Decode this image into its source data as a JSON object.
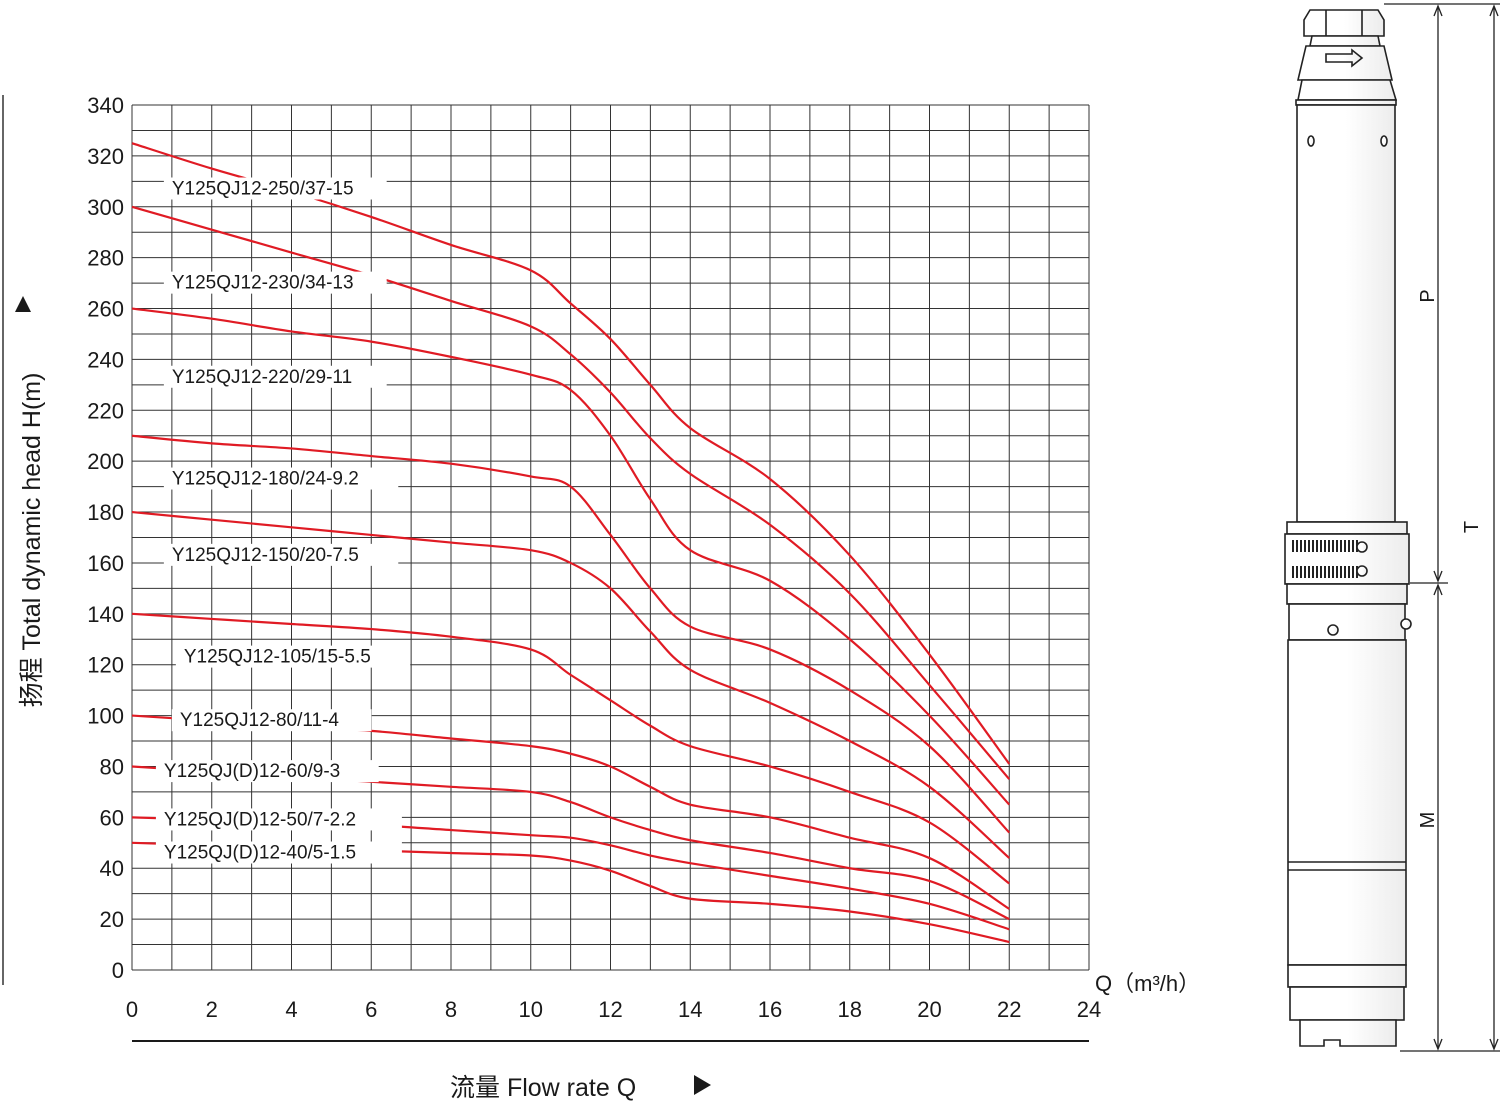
{
  "chart_data": {
    "type": "line",
    "xlabel": "流量 Flow rate Q",
    "xunit": "Q（m³/h）",
    "ylabel": "扬程 Total dynamic head H(m)",
    "xlim": [
      0,
      24
    ],
    "ylim": [
      0,
      340
    ],
    "xticks": [
      0,
      2,
      4,
      6,
      8,
      10,
      12,
      14,
      16,
      18,
      20,
      22,
      24
    ],
    "yticks": [
      0,
      20,
      40,
      60,
      80,
      100,
      120,
      140,
      160,
      180,
      200,
      220,
      240,
      260,
      280,
      300,
      320,
      340
    ],
    "grid": true,
    "x": [
      0,
      2,
      4,
      6,
      8,
      10,
      11,
      12,
      13,
      14,
      16,
      18,
      20,
      22
    ],
    "series": [
      {
        "name": "Y125QJ12-250/37-15",
        "values": [
          325,
          315,
          306,
          296,
          285,
          275,
          262,
          248,
          230,
          213,
          193,
          163,
          124,
          81
        ]
      },
      {
        "name": "Y125QJ12-230/34-13",
        "values": [
          300,
          291,
          282,
          273,
          263,
          253,
          242,
          227,
          209,
          195,
          175,
          148,
          112,
          75
        ]
      },
      {
        "name": "Y125QJ12-220/29-11",
        "values": [
          260,
          256,
          251,
          247,
          241,
          234,
          228,
          210,
          185,
          165,
          153,
          130,
          100,
          65
        ]
      },
      {
        "name": "Y125QJ12-180/24-9.2",
        "values": [
          210,
          207,
          205,
          202,
          199,
          194,
          190,
          171,
          150,
          135,
          126,
          110,
          88,
          54
        ]
      },
      {
        "name": "Y125QJ12-150/20-7.5",
        "values": [
          180,
          177,
          174,
          171,
          168,
          165,
          160,
          150,
          133,
          118,
          105,
          90,
          72,
          44
        ]
      },
      {
        "name": "Y125QJ12-105/15-5.5",
        "values": [
          140,
          138,
          136,
          134,
          131,
          126,
          116,
          106,
          96,
          88,
          80,
          70,
          58,
          34
        ]
      },
      {
        "name": "Y125QJ12-80/11-4",
        "values": [
          100,
          98,
          96,
          94,
          91,
          88,
          85,
          80,
          72,
          65,
          60,
          52,
          44,
          24
        ]
      },
      {
        "name": "Y125QJ(D)12-60/9-3",
        "values": [
          80,
          78,
          76,
          74,
          72,
          70,
          66,
          60,
          55,
          51,
          46,
          40,
          35,
          20
        ]
      },
      {
        "name": "Y125QJ(D)12-50/7-2.2",
        "values": [
          60,
          59,
          58,
          57,
          55,
          53,
          52,
          49,
          45,
          42,
          37,
          32,
          26,
          16
        ]
      },
      {
        "name": "Y125QJ(D)12-40/5-1.5",
        "values": [
          50,
          49,
          48,
          47,
          46,
          45,
          43,
          39,
          33,
          28,
          26,
          23,
          18,
          11
        ]
      }
    ]
  },
  "colors": {
    "curve": "#e01b24",
    "grid": "#333333",
    "text": "#1a1a1a"
  },
  "pump": {
    "dim_P": "P",
    "dim_M": "M",
    "dim_T": "T"
  }
}
